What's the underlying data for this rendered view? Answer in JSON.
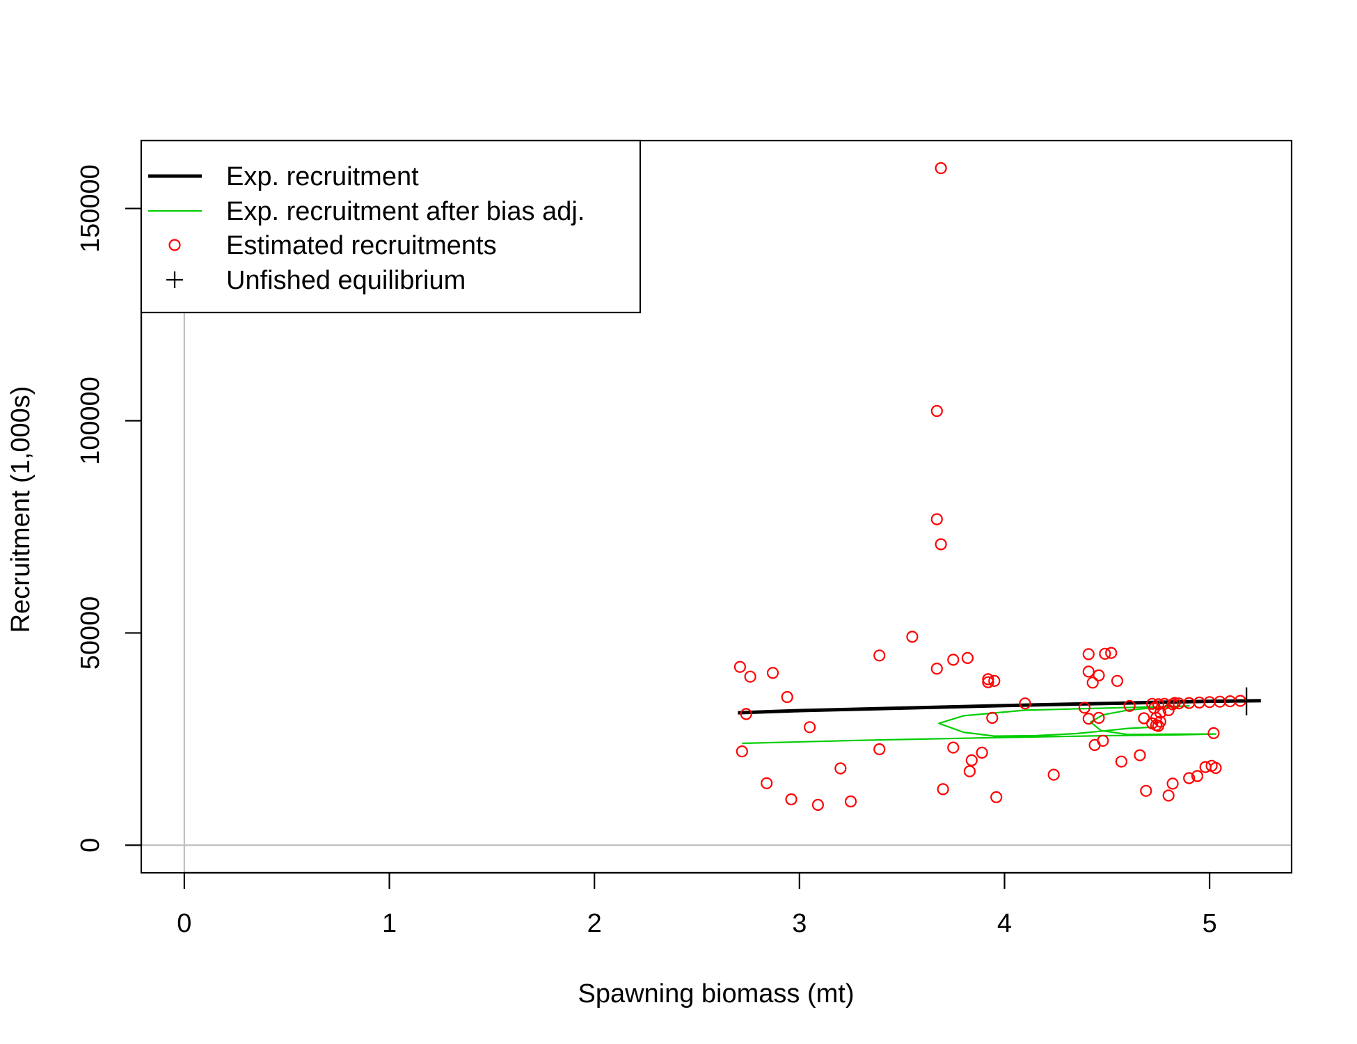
{
  "chart_data": {
    "type": "scatter",
    "xlabel": "Spawning biomass (mt)",
    "ylabel": "Recruitment (1,000s)",
    "xlim": [
      -0.21,
      5.4
    ],
    "ylim": [
      -6500,
      166000
    ],
    "x_ticks": [
      0,
      1,
      2,
      3,
      4,
      5
    ],
    "y_ticks": [
      0,
      50000,
      100000,
      150000
    ],
    "x_tick_labels": [
      "0",
      "1",
      "2",
      "3",
      "4",
      "5"
    ],
    "y_tick_labels": [
      "0",
      "50000",
      "100000",
      "150000"
    ],
    "grid": false,
    "reference_lines": {
      "x": 0,
      "y": 0,
      "color": "#bebebe"
    },
    "legend_position": "top-left",
    "legend": [
      {
        "label": "Exp. recruitment",
        "kind": "line",
        "color": "#000000"
      },
      {
        "label": "Exp. recruitment after bias adj.",
        "kind": "line",
        "color": "#00cd00"
      },
      {
        "label": "Estimated recruitments",
        "kind": "point",
        "color": "#ff0000"
      },
      {
        "label": "Unfished equilibrium",
        "kind": "plus",
        "color": "#000000"
      }
    ],
    "series": [
      {
        "name": "Exp. recruitment",
        "kind": "line",
        "color": "#000000",
        "x": [
          2.7,
          3.0,
          3.5,
          4.0,
          4.4,
          4.6,
          4.8,
          5.0,
          5.18,
          5.25
        ],
        "y": [
          31200,
          31700,
          32300,
          32900,
          33300,
          33500,
          33700,
          33900,
          34000,
          34050
        ]
      },
      {
        "name": "Exp. recruitment after bias adj.",
        "kind": "line",
        "color": "#00cd00",
        "x": [
          2.72,
          3.3,
          3.9,
          4.5,
          4.85,
          5.03,
          4.8,
          4.6,
          4.47,
          4.42,
          4.48,
          4.6,
          4.75,
          4.9,
          4.1,
          3.8,
          3.68,
          3.8,
          3.95,
          4.15,
          4.35,
          4.5,
          4.6,
          4.72
        ],
        "y": [
          24000,
          24700,
          25300,
          25800,
          26000,
          26200,
          26150,
          26100,
          27000,
          29000,
          30700,
          31800,
          32500,
          32800,
          31800,
          30500,
          28700,
          26600,
          25700,
          25800,
          26300,
          27000,
          27500,
          27800
        ]
      },
      {
        "name": "Estimated recruitments",
        "kind": "scatter",
        "color": "#ff0000",
        "x": [
          3.69,
          3.67,
          3.67,
          3.69,
          3.55,
          2.71,
          2.76,
          2.87,
          2.94,
          2.74,
          3.05,
          2.72,
          2.84,
          2.96,
          3.09,
          3.2,
          3.25,
          3.39,
          3.39,
          3.67,
          3.75,
          3.82,
          3.92,
          3.92,
          3.95,
          3.94,
          3.75,
          3.84,
          3.89,
          3.83,
          3.7,
          3.96,
          4.1,
          4.24,
          4.39,
          4.41,
          4.41,
          4.43,
          4.46,
          4.49,
          4.52,
          4.55,
          4.41,
          4.46,
          4.44,
          4.48,
          4.57,
          4.61,
          4.66,
          4.68,
          4.69,
          4.72,
          4.74,
          4.75,
          4.76,
          4.8,
          4.82,
          4.82,
          4.8,
          4.83,
          4.9,
          4.94,
          4.98,
          5.01,
          5.03,
          5.02,
          4.72,
          4.75,
          4.78,
          4.85,
          4.9,
          4.95,
          5.0,
          5.05,
          5.1,
          5.15,
          4.74,
          4.76,
          4.73
        ],
        "y": [
          159500,
          102300,
          76800,
          70900,
          49100,
          42000,
          39700,
          40600,
          34900,
          30900,
          27800,
          22100,
          14600,
          10800,
          9500,
          18100,
          10300,
          44700,
          22600,
          41600,
          43700,
          44100,
          39100,
          38400,
          38700,
          30000,
          23000,
          20000,
          21800,
          17400,
          13200,
          11300,
          33400,
          16600,
          32400,
          45000,
          40900,
          38300,
          40000,
          45100,
          45300,
          38700,
          29800,
          30000,
          23600,
          24600,
          19700,
          32800,
          21200,
          29900,
          12800,
          28700,
          28300,
          28100,
          29100,
          31800,
          14500,
          33200,
          11700,
          33500,
          15800,
          16300,
          18400,
          18700,
          18200,
          26400,
          33300,
          33200,
          33300,
          33400,
          33500,
          33600,
          33700,
          33800,
          33900,
          34000,
          30000,
          31200,
          32300
        ]
      },
      {
        "name": "Unfished equilibrium",
        "kind": "plus",
        "color": "#000000",
        "x": [
          5.18
        ],
        "y": [
          33900
        ]
      }
    ]
  }
}
